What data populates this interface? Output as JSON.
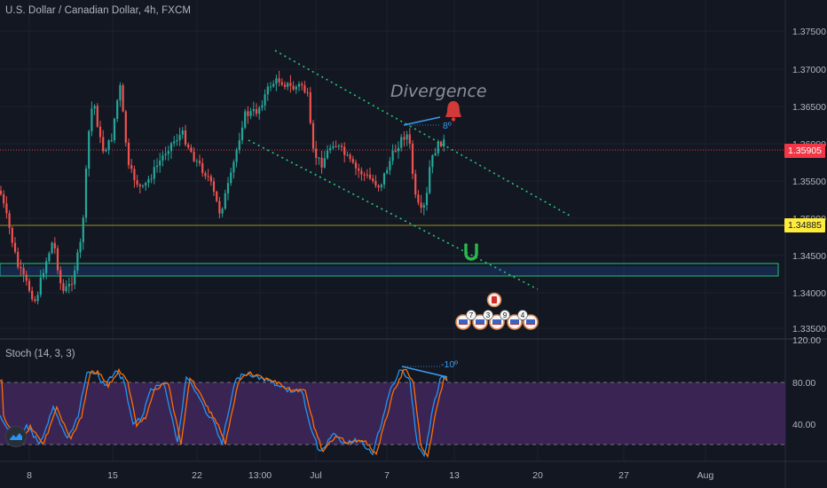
{
  "header": {
    "title": "U.S. Dollar / Canadian Dollar, 4h, FXCM"
  },
  "annotation": {
    "divergence": "Divergence",
    "price_angle": "8º",
    "stoch_angle": "-10º"
  },
  "price_axis": {
    "ticks": [
      "1.37500",
      "1.37000",
      "1.36500",
      "1.36000",
      "1.35500",
      "1.35000",
      "1.34500",
      "1.34000",
      "1.33500"
    ],
    "current_price": "1.35905",
    "level_price": "1.34885",
    "current_color": "#f23645",
    "level_color": "#ffeb3b"
  },
  "stoch": {
    "label": "Stoch (14, 3, 3)",
    "ticks": [
      "120.00",
      "80.00",
      "40.00"
    ],
    "band_color": "#4a2c6e"
  },
  "time_axis": {
    "labels": [
      "8",
      "15",
      "22",
      "13:00",
      "Jul",
      "7",
      "13",
      "20",
      "27",
      "Aug"
    ]
  },
  "events": {
    "badges": [
      "7",
      "3",
      "9",
      "4"
    ]
  },
  "icons": {
    "alert": "alert-bell-icon",
    "magnet": "magnet-icon",
    "logo": "tradingview-logo-icon"
  }
}
